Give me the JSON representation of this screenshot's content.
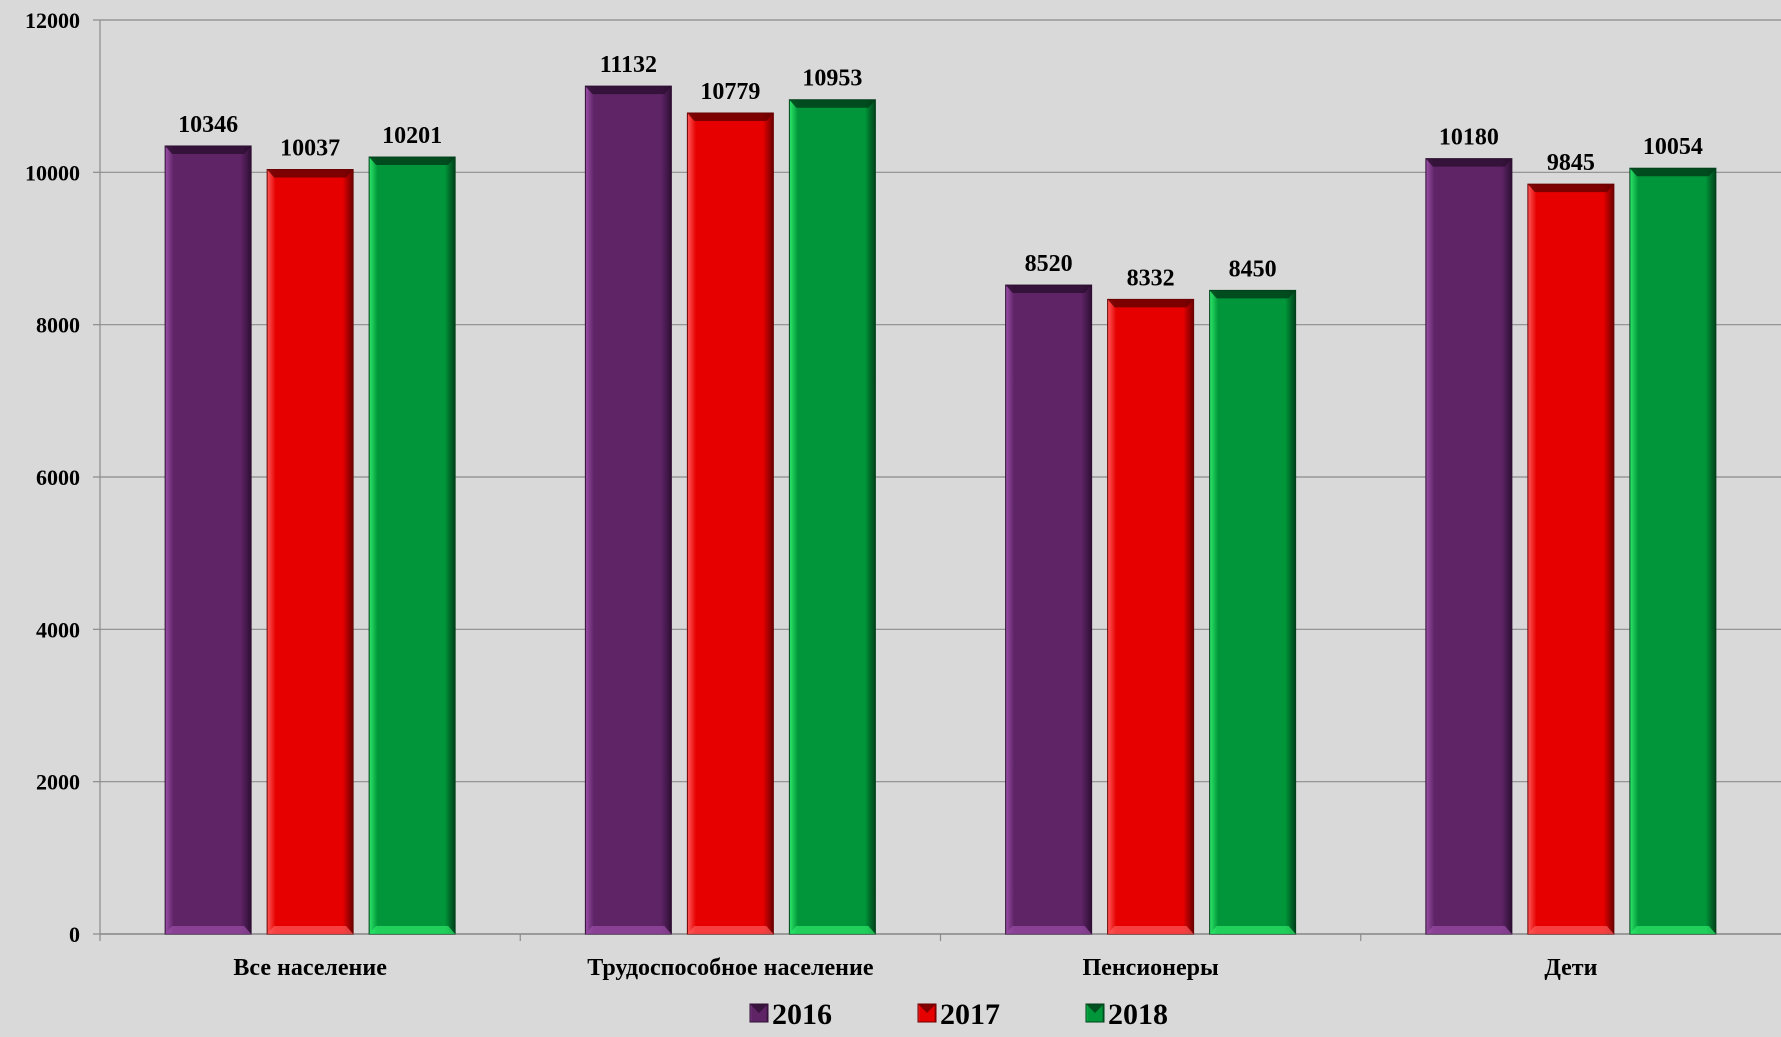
{
  "chart_data": {
    "type": "bar",
    "categories": [
      "Все население",
      "Трудоспособное население",
      "Пенсионеры",
      "Дети"
    ],
    "series": [
      {
        "name": "2016",
        "values": [
          10346,
          11132,
          8520,
          10180
        ],
        "color": "#5e2466",
        "light": "#9b4fa8",
        "dark": "#2e0f33"
      },
      {
        "name": "2017",
        "values": [
          10037,
          10779,
          8332,
          9845
        ],
        "color": "#e60000",
        "light": "#ff5a5a",
        "dark": "#6a0000"
      },
      {
        "name": "2018",
        "values": [
          10201,
          10953,
          8450,
          10054
        ],
        "color": "#009639",
        "light": "#2ee86a",
        "dark": "#00401a"
      }
    ],
    "yticks": [
      "0",
      "2000",
      "4000",
      "6000",
      "8000",
      "10000",
      "12000"
    ],
    "ylim": [
      0,
      12000
    ],
    "grid": true,
    "legend_position": "bottom",
    "title": "",
    "xlabel": "",
    "ylabel": ""
  }
}
